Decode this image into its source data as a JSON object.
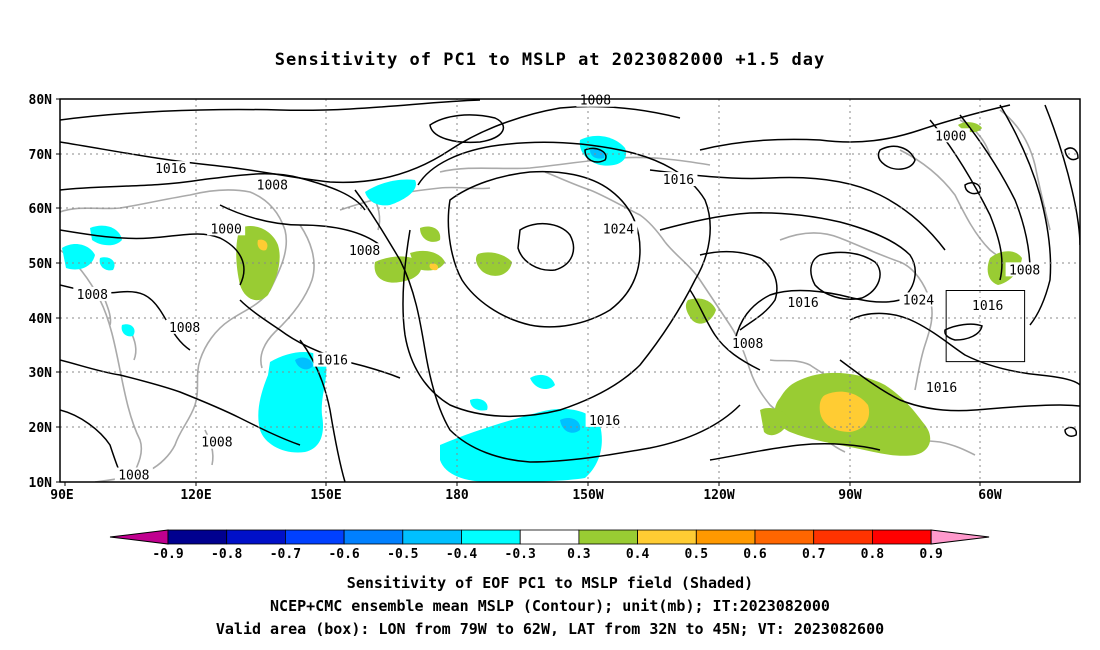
{
  "title": "Sensitivity of PC1 to MSLP at 2023082000 +1.5 day",
  "map": {
    "type": "map",
    "lat_ticks": [
      "80N",
      "70N",
      "60N",
      "50N",
      "40N",
      "30N",
      "20N",
      "10N"
    ],
    "lon_ticks": [
      "90E",
      "120E",
      "150E",
      "180",
      "150W",
      "120W",
      "90W",
      "60W"
    ],
    "contour_interval_mb": 8,
    "contour_labels": [
      {
        "text": "1008",
        "lon": -155,
        "lat": 79.5
      },
      {
        "text": "1000",
        "lon": -78,
        "lat": 73
      },
      {
        "text": "1016",
        "lon": 113,
        "lat": 67
      },
      {
        "text": "1008",
        "lon": 135,
        "lat": 64
      },
      {
        "text": "1016",
        "lon": -137,
        "lat": 65
      },
      {
        "text": "1000",
        "lon": 125,
        "lat": 56
      },
      {
        "text": "1024",
        "lon": -150,
        "lat": 56
      },
      {
        "text": "1008",
        "lon": 155,
        "lat": 52
      },
      {
        "text": "1008",
        "lon": 96,
        "lat": 44
      },
      {
        "text": "1008",
        "lon": -62,
        "lat": 48.5
      },
      {
        "text": "1016",
        "lon": -110,
        "lat": 42.5
      },
      {
        "text": "1024",
        "lon": -85,
        "lat": 43
      },
      {
        "text": "1016",
        "lon": -70,
        "lat": 42
      },
      {
        "text": "1008",
        "lon": 116,
        "lat": 38
      },
      {
        "text": "1008",
        "lon": -122,
        "lat": 35
      },
      {
        "text": "1016",
        "lon": 148,
        "lat": 32
      },
      {
        "text": "1016",
        "lon": -80,
        "lat": 27
      },
      {
        "text": "1016",
        "lon": -153,
        "lat": 21
      },
      {
        "text": "1008",
        "lon": 123,
        "lat": 17
      },
      {
        "text": "1008",
        "lon": 105,
        "lat": 11
      }
    ],
    "valid_box": {
      "lon_min": -79,
      "lon_max": -62,
      "lat_min": 32,
      "lat_max": 45
    }
  },
  "colorbar": {
    "labels": [
      "-0.9",
      "-0.8",
      "-0.7",
      "-0.6",
      "-0.5",
      "-0.4",
      "-0.3",
      "0.3",
      "0.4",
      "0.5",
      "0.6",
      "0.7",
      "0.8",
      "0.9"
    ],
    "colors": {
      "left_tip": "#c0008f",
      "bins": [
        "#00008f",
        "#0010c8",
        "#0040ff",
        "#0080ff",
        "#00c0ff",
        "#00ffff",
        "#ffffff",
        "#99cc33",
        "#ffcc33",
        "#ff9900",
        "#ff6600",
        "#ff3300",
        "#ff0000"
      ],
      "right_tip": "#ff99cc"
    }
  },
  "footer": {
    "line1": "Sensitivity of EOF PC1 to MSLP field (Shaded)",
    "line2": "NCEP+CMC ensemble mean MSLP (Contour); unit(mb); IT:2023082000",
    "line3": "Valid area (box): LON from 79W to 62W, LAT from 32N to 45N; VT: 2023082600"
  }
}
